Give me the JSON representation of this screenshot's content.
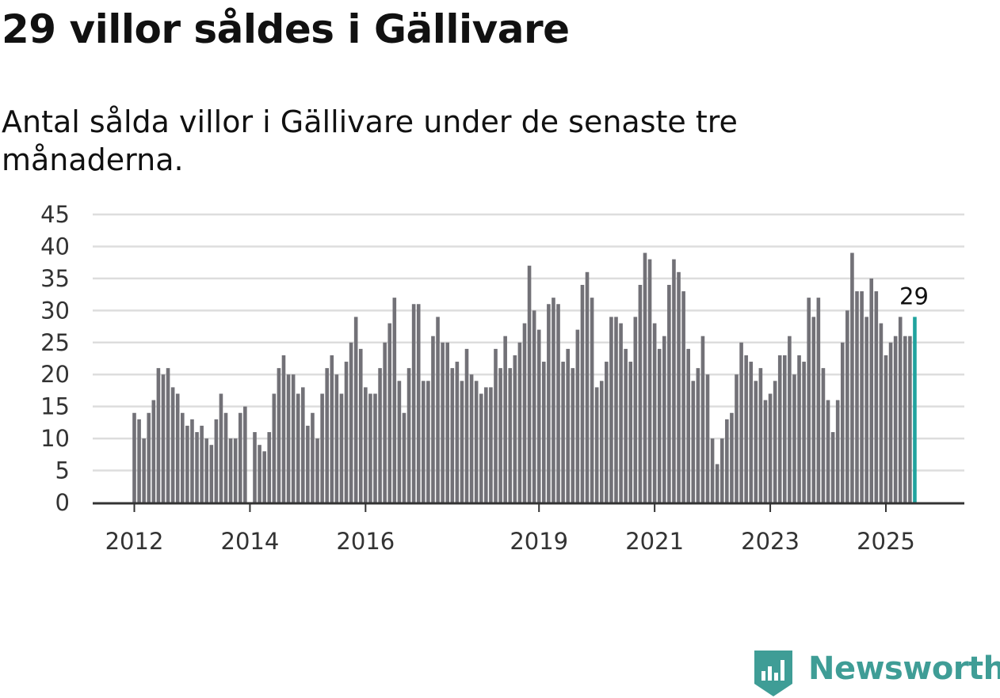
{
  "header": {
    "title": "29 villor såldes i Gällivare",
    "subtitle": "Antal sålda villor i Gällivare under de senaste tre månaderna."
  },
  "brand": {
    "name": "Newsworthy",
    "icon": "newsworthy-logo-icon",
    "color": "#3f9d96"
  },
  "colors": {
    "bar": "#727177",
    "highlight": "#20a39e",
    "grid": "#dddddd",
    "axis": "#333333"
  },
  "chart_data": {
    "type": "bar",
    "title": "29 villor såldes i Gällivare",
    "subtitle": "Antal sålda villor i Gällivare under de senaste tre månaderna.",
    "xlabel": "",
    "ylabel": "",
    "ylim": [
      0,
      45
    ],
    "yticks": [
      0,
      5,
      10,
      15,
      20,
      25,
      30,
      35,
      40,
      45
    ],
    "xticks": [
      "2012",
      "2014",
      "2016",
      "2019",
      "2021",
      "2023",
      "2025"
    ],
    "grid": true,
    "start": "2012-01",
    "frequency": "monthly",
    "values": [
      14,
      13,
      10,
      14,
      16,
      21,
      20,
      21,
      18,
      17,
      14,
      12,
      13,
      11,
      12,
      10,
      9,
      13,
      17,
      14,
      10,
      10,
      14,
      15,
      null,
      11,
      9,
      8,
      11,
      17,
      21,
      23,
      20,
      20,
      17,
      18,
      12,
      14,
      10,
      17,
      21,
      23,
      20,
      17,
      22,
      25,
      29,
      24,
      18,
      17,
      17,
      21,
      25,
      28,
      32,
      19,
      14,
      21,
      31,
      31,
      19,
      19,
      26,
      29,
      25,
      25,
      21,
      22,
      19,
      24,
      20,
      19,
      17,
      18,
      18,
      24,
      21,
      26,
      21,
      23,
      25,
      28,
      37,
      30,
      27,
      22,
      31,
      32,
      31,
      22,
      24,
      21,
      27,
      34,
      36,
      32,
      18,
      19,
      22,
      29,
      29,
      28,
      24,
      22,
      29,
      34,
      39,
      38,
      28,
      24,
      26,
      34,
      38,
      36,
      33,
      24,
      19,
      21,
      26,
      20,
      10,
      6,
      10,
      13,
      14,
      20,
      25,
      23,
      22,
      19,
      21,
      16,
      17,
      19,
      23,
      23,
      26,
      20,
      23,
      22,
      32,
      29,
      32,
      21,
      16,
      11,
      16,
      25,
      30,
      39,
      33,
      33,
      29,
      35,
      33,
      28,
      23,
      25,
      26,
      29,
      26,
      26,
      29
    ],
    "highlight": {
      "value": 29,
      "label": "29"
    }
  }
}
